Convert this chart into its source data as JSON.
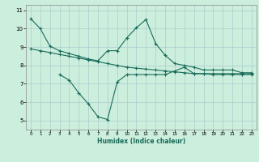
{
  "line1_x": [
    0,
    1,
    2,
    3,
    4,
    5,
    6,
    7,
    8,
    9,
    10,
    11,
    12,
    13,
    14,
    15,
    16,
    17,
    18,
    19,
    20,
    21,
    22,
    23
  ],
  "line1_y": [
    10.55,
    10.0,
    9.05,
    8.8,
    8.65,
    8.5,
    8.35,
    8.25,
    8.8,
    8.8,
    9.5,
    10.05,
    10.5,
    9.2,
    8.55,
    8.1,
    8.0,
    7.9,
    7.75,
    7.75,
    7.75,
    7.75,
    7.6,
    7.6
  ],
  "line2_x": [
    0,
    1,
    2,
    3,
    4,
    5,
    6,
    7,
    8,
    9,
    10,
    11,
    12,
    13,
    14,
    15,
    16,
    17,
    18,
    19,
    20,
    21,
    22,
    23
  ],
  "line2_y": [
    8.9,
    8.8,
    8.7,
    8.6,
    8.5,
    8.4,
    8.3,
    8.2,
    8.1,
    8.0,
    7.9,
    7.85,
    7.8,
    7.75,
    7.7,
    7.65,
    7.6,
    7.55,
    7.55,
    7.5,
    7.5,
    7.5,
    7.5,
    7.5
  ],
  "line3_x": [
    3,
    4,
    5,
    6,
    7,
    8,
    9,
    10,
    11,
    12,
    13,
    14,
    15,
    16,
    17,
    18,
    19,
    20,
    21,
    22,
    23
  ],
  "line3_y": [
    7.5,
    7.2,
    6.5,
    5.9,
    5.2,
    5.05,
    7.1,
    7.5,
    7.5,
    7.5,
    7.5,
    7.5,
    7.7,
    7.9,
    7.55,
    7.55,
    7.55,
    7.55,
    7.55,
    7.55,
    7.55
  ],
  "line_color": "#1a6b5a",
  "bg_color": "#cceedd",
  "grid_color": "#aacccc",
  "xlabel": "Humidex (Indice chaleur)",
  "xlim": [
    -0.5,
    23.5
  ],
  "ylim": [
    4.5,
    11.3
  ],
  "yticks": [
    5,
    6,
    7,
    8,
    9,
    10,
    11
  ],
  "xticks": [
    0,
    1,
    2,
    3,
    4,
    5,
    6,
    7,
    8,
    9,
    10,
    11,
    12,
    13,
    14,
    15,
    16,
    17,
    18,
    19,
    20,
    21,
    22,
    23
  ],
  "marker": "+",
  "linewidth": 0.8,
  "markersize": 3
}
